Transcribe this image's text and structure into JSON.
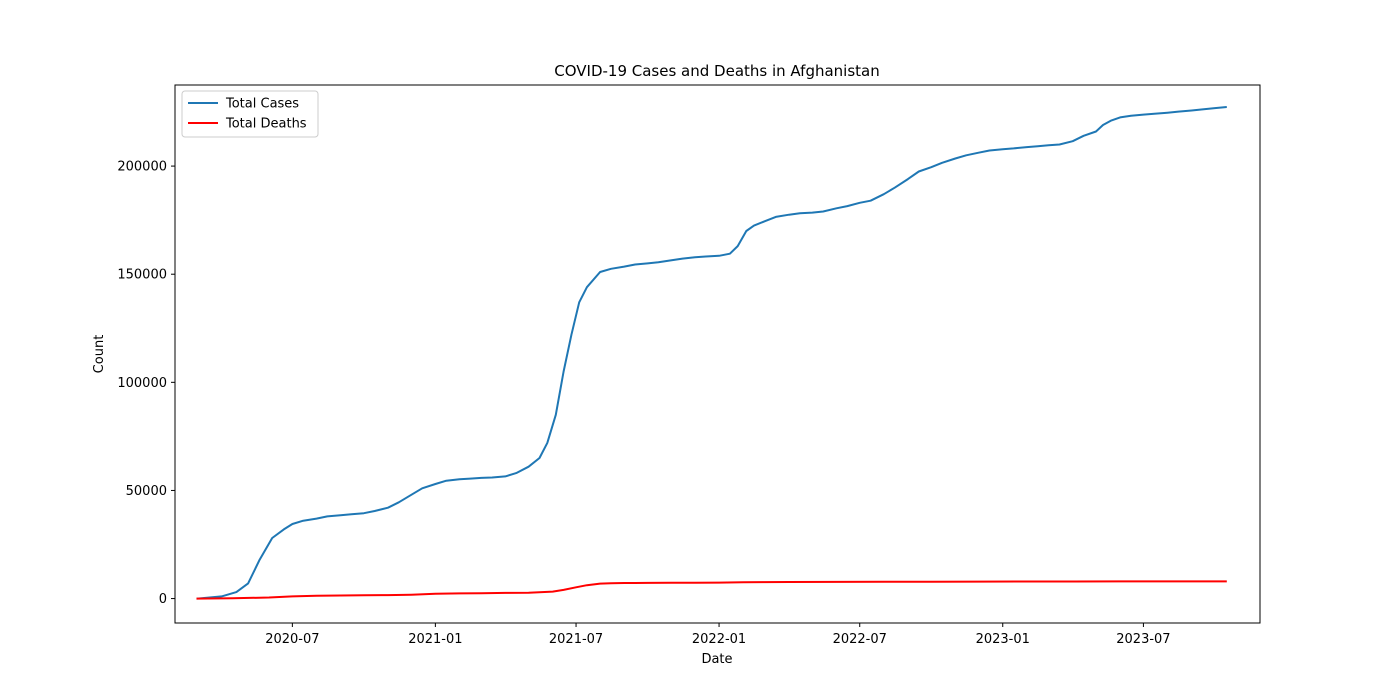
{
  "chart_data": {
    "type": "line",
    "title": "COVID-19 Cases and Deaths in Afghanistan",
    "xlabel": "Date",
    "ylabel": "Count",
    "xlim": [
      "2020-02-01",
      "2023-11-28"
    ],
    "ylim": [
      -11300,
      237500
    ],
    "x_ticks": [
      "2020-07-01",
      "2021-01-01",
      "2021-07-01",
      "2022-01-01",
      "2022-07-01",
      "2023-01-01",
      "2023-07-01"
    ],
    "x_tick_labels": [
      "2020-07",
      "2021-01",
      "2021-07",
      "2022-01",
      "2022-07",
      "2023-01",
      "2023-07"
    ],
    "y_ticks": [
      0,
      50000,
      100000,
      150000,
      200000
    ],
    "y_tick_labels": [
      "0",
      "50000",
      "100000",
      "150000",
      "200000"
    ],
    "grid": false,
    "legend_position": "top-left",
    "series": [
      {
        "name": "Total Cases",
        "color": "#1f77b4",
        "points": [
          [
            "2020-03-01",
            0
          ],
          [
            "2020-04-01",
            1000
          ],
          [
            "2020-04-20",
            3000
          ],
          [
            "2020-05-05",
            7000
          ],
          [
            "2020-05-20",
            18000
          ],
          [
            "2020-06-05",
            28000
          ],
          [
            "2020-06-20",
            32000
          ],
          [
            "2020-07-01",
            34500
          ],
          [
            "2020-07-15",
            36000
          ],
          [
            "2020-08-01",
            37000
          ],
          [
            "2020-08-15",
            38000
          ],
          [
            "2020-09-01",
            38500
          ],
          [
            "2020-09-15",
            39000
          ],
          [
            "2020-10-01",
            39500
          ],
          [
            "2020-10-15",
            40500
          ],
          [
            "2020-11-01",
            42000
          ],
          [
            "2020-11-15",
            44500
          ],
          [
            "2020-12-01",
            48000
          ],
          [
            "2020-12-15",
            51000
          ],
          [
            "2021-01-01",
            53000
          ],
          [
            "2021-01-15",
            54500
          ],
          [
            "2021-02-01",
            55200
          ],
          [
            "2021-02-15",
            55500
          ],
          [
            "2021-03-01",
            55800
          ],
          [
            "2021-03-15",
            56000
          ],
          [
            "2021-04-01",
            56500
          ],
          [
            "2021-04-15",
            58000
          ],
          [
            "2021-05-01",
            61000
          ],
          [
            "2021-05-15",
            65000
          ],
          [
            "2021-05-25",
            72000
          ],
          [
            "2021-06-05",
            85000
          ],
          [
            "2021-06-15",
            105000
          ],
          [
            "2021-06-25",
            122000
          ],
          [
            "2021-07-05",
            137000
          ],
          [
            "2021-07-15",
            144000
          ],
          [
            "2021-08-01",
            151000
          ],
          [
            "2021-08-15",
            152500
          ],
          [
            "2021-09-01",
            153500
          ],
          [
            "2021-09-15",
            154500
          ],
          [
            "2021-10-01",
            155000
          ],
          [
            "2021-10-15",
            155500
          ],
          [
            "2021-11-01",
            156500
          ],
          [
            "2021-11-15",
            157200
          ],
          [
            "2021-12-01",
            157800
          ],
          [
            "2021-12-15",
            158200
          ],
          [
            "2022-01-01",
            158500
          ],
          [
            "2022-01-15",
            159500
          ],
          [
            "2022-01-25",
            163000
          ],
          [
            "2022-02-05",
            170000
          ],
          [
            "2022-02-15",
            172500
          ],
          [
            "2022-03-01",
            174500
          ],
          [
            "2022-03-15",
            176500
          ],
          [
            "2022-04-01",
            177500
          ],
          [
            "2022-04-15",
            178200
          ],
          [
            "2022-05-01",
            178500
          ],
          [
            "2022-05-15",
            179000
          ],
          [
            "2022-06-01",
            180500
          ],
          [
            "2022-06-15",
            181500
          ],
          [
            "2022-07-01",
            183000
          ],
          [
            "2022-07-15",
            184000
          ],
          [
            "2022-08-01",
            187000
          ],
          [
            "2022-08-15",
            190000
          ],
          [
            "2022-09-01",
            194000
          ],
          [
            "2022-09-15",
            197500
          ],
          [
            "2022-10-01",
            199500
          ],
          [
            "2022-10-15",
            201500
          ],
          [
            "2022-11-01",
            203500
          ],
          [
            "2022-11-15",
            205000
          ],
          [
            "2022-12-01",
            206200
          ],
          [
            "2022-12-15",
            207200
          ],
          [
            "2023-01-01",
            207800
          ],
          [
            "2023-01-15",
            208200
          ],
          [
            "2023-02-01",
            208800
          ],
          [
            "2023-02-15",
            209200
          ],
          [
            "2023-03-01",
            209600
          ],
          [
            "2023-03-15",
            210000
          ],
          [
            "2023-04-01",
            211500
          ],
          [
            "2023-04-15",
            214000
          ],
          [
            "2023-05-01",
            216000
          ],
          [
            "2023-05-10",
            219000
          ],
          [
            "2023-05-20",
            221000
          ],
          [
            "2023-06-01",
            222500
          ],
          [
            "2023-06-15",
            223300
          ],
          [
            "2023-07-01",
            223800
          ],
          [
            "2023-07-15",
            224200
          ],
          [
            "2023-08-01",
            224700
          ],
          [
            "2023-08-15",
            225200
          ],
          [
            "2023-09-01",
            225700
          ],
          [
            "2023-09-15",
            226200
          ],
          [
            "2023-10-01",
            226800
          ],
          [
            "2023-10-15",
            227300
          ]
        ]
      },
      {
        "name": "Total Deaths",
        "color": "#ff0000",
        "points": [
          [
            "2020-03-01",
            0
          ],
          [
            "2020-04-15",
            100
          ],
          [
            "2020-06-01",
            500
          ],
          [
            "2020-07-01",
            1000
          ],
          [
            "2020-08-01",
            1300
          ],
          [
            "2020-09-01",
            1400
          ],
          [
            "2020-10-01",
            1500
          ],
          [
            "2020-11-01",
            1600
          ],
          [
            "2020-12-01",
            1800
          ],
          [
            "2021-01-01",
            2200
          ],
          [
            "2021-02-01",
            2400
          ],
          [
            "2021-03-01",
            2500
          ],
          [
            "2021-04-01",
            2600
          ],
          [
            "2021-05-01",
            2700
          ],
          [
            "2021-06-01",
            3200
          ],
          [
            "2021-06-15",
            4000
          ],
          [
            "2021-07-01",
            5200
          ],
          [
            "2021-07-15",
            6200
          ],
          [
            "2021-08-01",
            6900
          ],
          [
            "2021-08-15",
            7100
          ],
          [
            "2021-09-01",
            7200
          ],
          [
            "2021-10-01",
            7250
          ],
          [
            "2021-11-01",
            7300
          ],
          [
            "2021-12-01",
            7350
          ],
          [
            "2022-01-01",
            7400
          ],
          [
            "2022-02-01",
            7500
          ],
          [
            "2022-03-01",
            7600
          ],
          [
            "2022-04-01",
            7650
          ],
          [
            "2022-06-01",
            7700
          ],
          [
            "2022-08-01",
            7750
          ],
          [
            "2022-10-01",
            7800
          ],
          [
            "2022-12-01",
            7850
          ],
          [
            "2023-02-01",
            7880
          ],
          [
            "2023-04-01",
            7900
          ],
          [
            "2023-06-01",
            7920
          ],
          [
            "2023-08-01",
            7940
          ],
          [
            "2023-10-15",
            7960
          ]
        ]
      }
    ]
  }
}
